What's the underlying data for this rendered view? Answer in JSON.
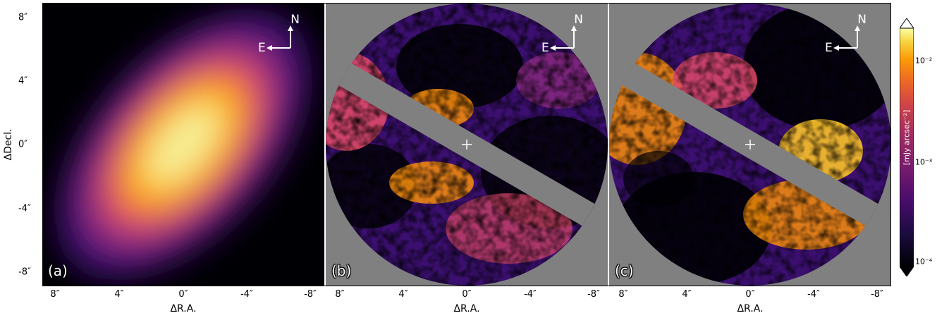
{
  "chart_data": [
    {
      "type": "heatmap",
      "panel_label": "(a)",
      "xlabel": "ΔR.A.",
      "ylabel": "ΔDecl.",
      "xticks": [
        "8″",
        "4″",
        "0″",
        "-4″",
        "-8″"
      ],
      "yticks": [
        "8″",
        "4″",
        "0″",
        "-4″",
        "-8″"
      ],
      "xlim": [
        9,
        -9
      ],
      "ylim": [
        -9,
        9
      ],
      "compass": {
        "north": "N",
        "east": "E"
      }
    },
    {
      "type": "heatmap",
      "panel_label": "(b)",
      "xlabel": "ΔR.A.",
      "xticks": [
        "8″",
        "4″",
        "0″",
        "-4″",
        "-8″"
      ],
      "xlim": [
        9,
        -9
      ],
      "ylim": [
        -9,
        9
      ],
      "compass": {
        "north": "N",
        "east": "E"
      },
      "center_marker": "+"
    },
    {
      "type": "heatmap",
      "panel_label": "(c)",
      "xlabel": "ΔR.A.",
      "xticks": [
        "8″",
        "4″",
        "0″",
        "-4″",
        "-8″"
      ],
      "xlim": [
        9,
        -9
      ],
      "ylim": [
        -9,
        9
      ],
      "compass": {
        "north": "N",
        "east": "E"
      },
      "center_marker": "+"
    }
  ],
  "colorbar": {
    "label": "[mJy arcsec⁻²]",
    "scale": "log",
    "range": [
      0.0001,
      0.02
    ],
    "ticks": [
      "10⁻²",
      "10⁻³",
      "10⁻⁴"
    ],
    "colormap": "inferno"
  },
  "colors": {
    "background_mask": "#808080"
  }
}
